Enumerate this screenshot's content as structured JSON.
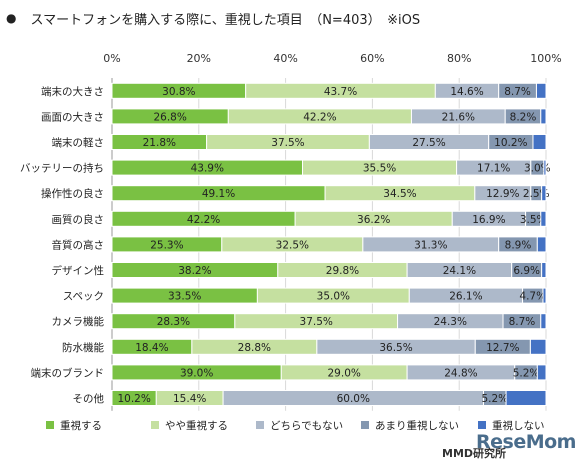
{
  "chart_data": {
    "type": "bar",
    "stacked": true,
    "orientation": "horizontal",
    "title": "スマートフォンを購入する際に、重視した項目　（N=403）　※iOS",
    "title_bullet": "●",
    "xlim": [
      0,
      100
    ],
    "x_ticks": [
      "0%",
      "20%",
      "40%",
      "60%",
      "80%",
      "100%"
    ],
    "categories": [
      "端末の大きさ",
      "画面の大きさ",
      "端末の軽さ",
      "バッテリーの持ち",
      "操作性の良さ",
      "画質の良さ",
      "音質の高さ",
      "デザイン性",
      "スペック",
      "カメラ機能",
      "防水機能",
      "端末のブランド",
      "その他"
    ],
    "series": [
      {
        "name": "重視する",
        "color": "#7ac143",
        "values": [
          30.8,
          26.8,
          21.8,
          43.9,
          49.1,
          42.2,
          25.3,
          38.2,
          33.5,
          28.3,
          18.4,
          39.0,
          10.2
        ]
      },
      {
        "name": "やや重視する",
        "color": "#c5e0a0",
        "values": [
          43.7,
          42.2,
          37.5,
          35.5,
          34.5,
          36.2,
          32.5,
          29.8,
          35.0,
          37.5,
          28.8,
          29.0,
          15.4
        ]
      },
      {
        "name": "どちらでもない",
        "color": "#adb9ca",
        "values": [
          14.6,
          21.6,
          27.5,
          17.1,
          12.9,
          16.9,
          31.3,
          24.1,
          26.1,
          24.3,
          36.5,
          24.8,
          60.0
        ]
      },
      {
        "name": "あまり重視しない",
        "color": "#8497b0",
        "values": [
          8.7,
          8.2,
          10.2,
          3.0,
          2.5,
          3.5,
          8.9,
          6.9,
          4.7,
          8.7,
          12.7,
          5.2,
          5.2
        ]
      },
      {
        "name": "重視しない",
        "color": "#4472c4",
        "values": [
          2.2,
          1.2,
          3.0,
          0.5,
          1.0,
          1.2,
          2.0,
          1.0,
          0.7,
          1.2,
          3.6,
          2.0,
          9.2
        ]
      }
    ],
    "labels": [
      [
        "30.8%",
        "43.7%",
        "14.6%",
        "8.7%"
      ],
      [
        "26.8%",
        "42.2%",
        "21.6%",
        "8.2%"
      ],
      [
        "21.8%",
        "37.5%",
        "27.5%",
        "10.2%"
      ],
      [
        "43.9%",
        "35.5%",
        "17.1%",
        "3.0%"
      ],
      [
        "49.1%",
        "34.5%",
        "12.9%",
        "2.5%"
      ],
      [
        "42.2%",
        "36.2%",
        "16.9%",
        "3.5%"
      ],
      [
        "25.3%",
        "32.5%",
        "31.3%",
        "8.9%"
      ],
      [
        "38.2%",
        "29.8%",
        "24.1%",
        "6.9%"
      ],
      [
        "33.5%",
        "35.0%",
        "26.1%",
        "4.7%"
      ],
      [
        "28.3%",
        "37.5%",
        "24.3%",
        "8.7%"
      ],
      [
        "18.4%",
        "28.8%",
        "36.5%",
        "12.7%"
      ],
      [
        "39.0%",
        "29.0%",
        "24.8%",
        "5.2%"
      ],
      [
        "10.2%",
        "15.4%",
        "60.0%",
        "5.2%"
      ]
    ],
    "grid": true,
    "legend_position": "bottom"
  },
  "footer": {
    "source": "MMD研究所",
    "logo": "ReseMom"
  }
}
